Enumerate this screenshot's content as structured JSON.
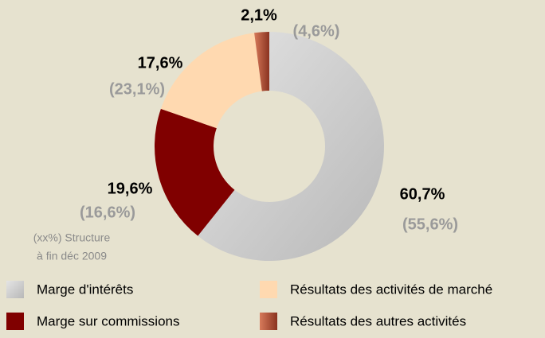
{
  "chart_data": {
    "type": "donut",
    "categories": [
      "Marge d'intérêts",
      "Marge sur commissions",
      "Résultats des activités de marché",
      "Résultats des autres activités"
    ],
    "values": [
      60.7,
      19.6,
      17.6,
      2.1
    ],
    "value_labels": [
      "60,7%",
      "19,6%",
      "17,6%",
      "2,1%"
    ],
    "previous_labels": [
      "(55,6%)",
      "(16,6%)",
      "(23,1%)",
      "(4,6%)"
    ],
    "colors": [
      "#c8c8c8",
      "#800000",
      "#ffd9b0",
      "#b5553a"
    ],
    "annotation": [
      "(xx%) Structure",
      "à fin déc 2009"
    ],
    "legend": true
  }
}
